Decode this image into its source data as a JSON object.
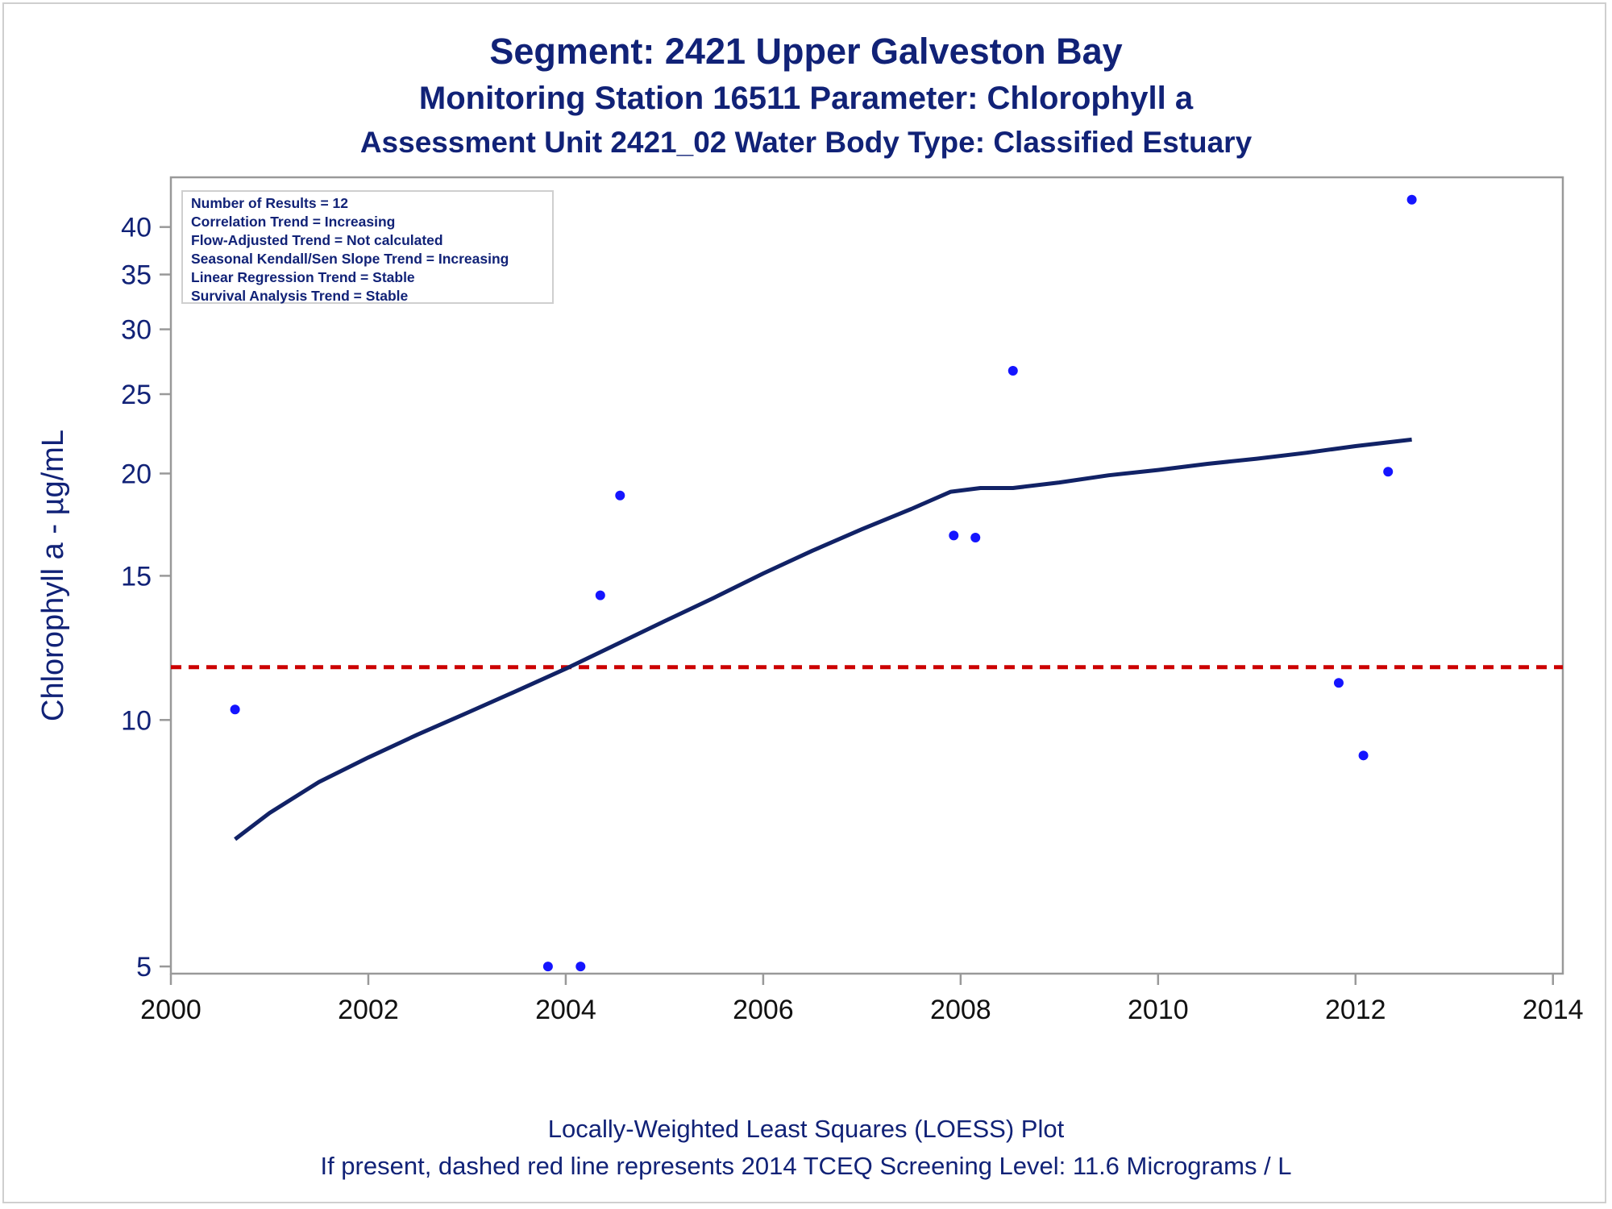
{
  "titles": {
    "line1": "Segment: 2421  Upper Galveston Bay",
    "line2": "Monitoring Station 16511 Parameter: Chlorophyll a",
    "line3": "Assessment Unit 2421_02   Water Body Type: Classified Estuary"
  },
  "footnotes": {
    "line1": "Locally-Weighted Least Squares (LOESS) Plot",
    "line2": "If present, dashed red line represents 2014 TCEQ Screening Level: 11.6 Micrograms / L"
  },
  "stats": [
    "Number of Results = 12",
    "Correlation Trend = Increasing",
    "Flow-Adjusted Trend = Not calculated",
    "Seasonal Kendall/Sen Slope Trend = Increasing",
    "Linear Regression Trend = Stable",
    "Survival Analysis Trend = Stable"
  ],
  "colors": {
    "text": "#112277",
    "points": "#1515ff",
    "loess": "#112266",
    "screening": "#cc0000",
    "axis": "#999999"
  },
  "chart_data": {
    "type": "scatter",
    "title": "Segment: 2421  Upper Galveston Bay",
    "xlabel": "",
    "ylabel": "Chlorophyll a -  µg/mL",
    "x_type": "date-year",
    "y_scale": "log",
    "xlim": [
      2000,
      2014.1
    ],
    "ylim": [
      4.9,
      46
    ],
    "x_ticks": [
      2000,
      2002,
      2004,
      2006,
      2008,
      2010,
      2012,
      2014
    ],
    "y_ticks": [
      5,
      10,
      15,
      20,
      25,
      30,
      35,
      40
    ],
    "grid": false,
    "series": [
      {
        "type": "scatter",
        "points": [
          {
            "x": 2000.65,
            "y": 10.3
          },
          {
            "x": 2003.82,
            "y": 5.0
          },
          {
            "x": 2004.15,
            "y": 5.0
          },
          {
            "x": 2004.35,
            "y": 14.2
          },
          {
            "x": 2004.55,
            "y": 18.8
          },
          {
            "x": 2007.93,
            "y": 16.8
          },
          {
            "x": 2008.15,
            "y": 16.7
          },
          {
            "x": 2008.53,
            "y": 26.7
          },
          {
            "x": 2011.83,
            "y": 11.1
          },
          {
            "x": 2012.08,
            "y": 9.05
          },
          {
            "x": 2012.33,
            "y": 20.1
          },
          {
            "x": 2012.57,
            "y": 43.2
          }
        ]
      },
      {
        "type": "line",
        "points": [
          {
            "x": 2000.65,
            "y": 7.15
          },
          {
            "x": 2001.0,
            "y": 7.7
          },
          {
            "x": 2001.5,
            "y": 8.4
          },
          {
            "x": 2002.0,
            "y": 9.0
          },
          {
            "x": 2002.5,
            "y": 9.6
          },
          {
            "x": 2003.0,
            "y": 10.2
          },
          {
            "x": 2003.5,
            "y": 10.85
          },
          {
            "x": 2004.0,
            "y": 11.55
          },
          {
            "x": 2004.5,
            "y": 12.35
          },
          {
            "x": 2005.0,
            "y": 13.2
          },
          {
            "x": 2005.5,
            "y": 14.1
          },
          {
            "x": 2006.0,
            "y": 15.1
          },
          {
            "x": 2006.5,
            "y": 16.1
          },
          {
            "x": 2007.0,
            "y": 17.1
          },
          {
            "x": 2007.5,
            "y": 18.1
          },
          {
            "x": 2007.9,
            "y": 19.0
          },
          {
            "x": 2008.2,
            "y": 19.2
          },
          {
            "x": 2008.53,
            "y": 19.2
          },
          {
            "x": 2009.0,
            "y": 19.5
          },
          {
            "x": 2009.5,
            "y": 19.9
          },
          {
            "x": 2010.0,
            "y": 20.2
          },
          {
            "x": 2010.5,
            "y": 20.55
          },
          {
            "x": 2011.0,
            "y": 20.85
          },
          {
            "x": 2011.5,
            "y": 21.2
          },
          {
            "x": 2012.0,
            "y": 21.6
          },
          {
            "x": 2012.57,
            "y": 22.0
          }
        ]
      }
    ],
    "reference_line": {
      "y": 11.6,
      "style": "dashed"
    }
  }
}
